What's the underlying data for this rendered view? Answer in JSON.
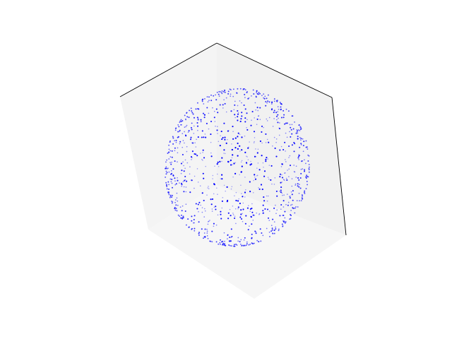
{
  "chart_data": {
    "type": "scatter",
    "projection": "3d",
    "title": "",
    "xlabel": "",
    "ylabel": "",
    "zlabel": "",
    "axes_visible": false,
    "grid": false,
    "pane_color": "#f2f2f2",
    "edge_color": "#000000",
    "marker_color": "#0000ff",
    "point_count": 1000,
    "shape": "spherical shell",
    "radius": 1.0,
    "xlim": [
      -1,
      1
    ],
    "ylim": [
      -1,
      1
    ],
    "zlim": [
      -1,
      1
    ]
  }
}
